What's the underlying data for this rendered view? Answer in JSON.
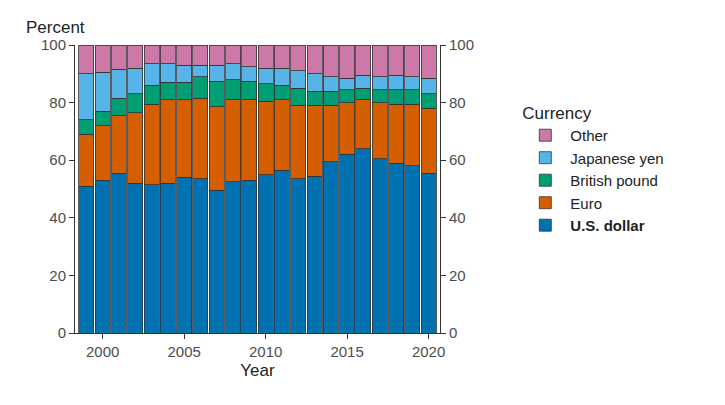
{
  "chart_data": {
    "type": "bar",
    "stacked": true,
    "grid": false,
    "legend": "right",
    "y_label": "Percent",
    "x_label": "Year",
    "legend_title": "Currency",
    "x": [
      1999,
      2000,
      2001,
      2002,
      2003,
      2004,
      2005,
      2006,
      2007,
      2008,
      2009,
      2010,
      2011,
      2012,
      2013,
      2014,
      2015,
      2016,
      2017,
      2018,
      2019,
      2020
    ],
    "xlim": [
      1998.3,
      2020.7
    ],
    "xticks": [
      2000,
      2005,
      2010,
      2015,
      2020
    ],
    "ylim": [
      0,
      100
    ],
    "yticks": [
      0,
      20,
      40,
      60,
      80,
      100
    ],
    "y2lim": [
      0,
      100
    ],
    "y2ticks": [
      0,
      20,
      40,
      60,
      80,
      100
    ],
    "series": [
      {
        "name": "U.S. dollar",
        "color": "#0072b2",
        "values": [
          51,
          53,
          55.5,
          52,
          51.5,
          52,
          54,
          53.5,
          49.5,
          52.5,
          53,
          55,
          56.5,
          53.5,
          54.5,
          59.5,
          62,
          64,
          60.5,
          59,
          58,
          55.5
        ]
      },
      {
        "name": "Euro",
        "color": "#d55e00",
        "values": [
          18,
          19,
          20,
          24.5,
          28,
          29,
          27,
          28,
          29,
          28.5,
          28,
          25.5,
          24.5,
          25.5,
          24.5,
          19.5,
          18,
          17,
          19.5,
          20.5,
          21.5,
          22.5
        ]
      },
      {
        "name": "British pound",
        "color": "#009e73",
        "values": [
          5,
          5,
          6,
          6.5,
          6.5,
          6,
          6,
          7.5,
          9,
          7,
          6.5,
          6,
          5,
          6,
          5,
          5,
          4.5,
          4,
          4.5,
          5,
          5,
          5
        ]
      },
      {
        "name": "Japanese yen",
        "color": "#56b4e9",
        "values": [
          16,
          13.5,
          10,
          9,
          7.5,
          6.5,
          6,
          4,
          5.5,
          5.5,
          5,
          5.5,
          6,
          6,
          6,
          5,
          4,
          4.5,
          4.5,
          5,
          4.5,
          5.5
        ]
      },
      {
        "name": "Other",
        "color": "#cc79a7",
        "values": [
          10,
          9.5,
          8.5,
          8,
          6.5,
          6.5,
          7,
          7,
          7,
          6.5,
          7.5,
          8,
          8,
          9,
          10,
          11,
          11.5,
          10.5,
          11,
          10.5,
          11,
          11.5
        ]
      }
    ]
  }
}
